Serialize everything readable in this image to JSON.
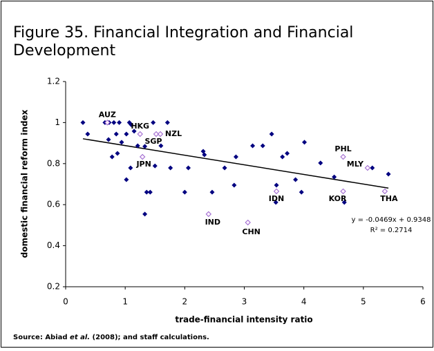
{
  "chart_data": {
    "type": "scatter",
    "title": [
      "Figure 35. Financial Integration and Financial",
      "Development"
    ],
    "x_label": "trade-financial intensity ratio",
    "y_label": "domestic financial reform index",
    "source": [
      "Source: Abiad",
      "et al.",
      "(2008); and staff calculations."
    ],
    "xlim": [
      0,
      6
    ],
    "xticks": [
      0,
      1,
      2,
      3,
      4,
      5,
      6
    ],
    "ylim": [
      0.2,
      1.2
    ],
    "yticks": [
      0.2,
      0.4,
      0.6,
      0.8,
      1,
      1.2
    ],
    "points": {
      "color": "#000080",
      "x": [
        0.29,
        0.37,
        0.66,
        0.73,
        0.81,
        0.9,
        1.07,
        1.1,
        0.72,
        0.78,
        0.85,
        0.87,
        0.94,
        1.02,
        1.02,
        1.09,
        1.15,
        1.21,
        1.33,
        1.36,
        1.42,
        1.33,
        1.47,
        1.5,
        1.6,
        1.71,
        1.76,
        2.0,
        2.06,
        2.31,
        2.33,
        2.46,
        2.67,
        2.83,
        2.86,
        3.14,
        3.31,
        3.46,
        3.54,
        3.53,
        3.64,
        3.72,
        3.86,
        3.96,
        4.01,
        4.28,
        4.51,
        4.68,
        5.15,
        5.42
      ],
      "y": [
        1.0,
        0.944,
        1.0,
        1.0,
        1.0,
        1.0,
        1.0,
        0.99,
        0.917,
        0.833,
        0.944,
        0.85,
        0.904,
        0.944,
        0.722,
        0.779,
        0.958,
        0.887,
        0.884,
        0.661,
        0.661,
        0.554,
        1.0,
        0.789,
        0.887,
        1.0,
        0.779,
        0.661,
        0.779,
        0.86,
        0.843,
        0.661,
        0.779,
        0.695,
        0.833,
        0.887,
        0.887,
        0.944,
        0.695,
        0.611,
        0.833,
        0.85,
        0.722,
        0.661,
        0.904,
        0.803,
        0.735,
        0.611,
        0.779,
        0.749
      ]
    },
    "labeled_points": {
      "color": "#fff0ff",
      "edge_color": "#9966cc",
      "labels": [
        "AUZ",
        "HKG",
        "SGP",
        "NZL",
        "JPN",
        "IND",
        "CHN",
        "IDN",
        "PHL",
        "KOR",
        "MLY",
        "THA"
      ],
      "x": [
        0.7,
        1.25,
        1.52,
        1.59,
        1.29,
        2.4,
        3.06,
        3.54,
        4.66,
        4.66,
        5.07,
        5.36
      ],
      "y": [
        1.0,
        0.944,
        0.944,
        0.944,
        0.833,
        0.554,
        0.513,
        0.665,
        0.833,
        0.665,
        0.779,
        0.665
      ]
    },
    "trendline": {
      "slope": -0.0469,
      "intercept": 0.9348,
      "color": "#000000"
    },
    "annotations": [
      "y = -0.0469x + 0.9348",
      "R² = 0.2714"
    ]
  }
}
